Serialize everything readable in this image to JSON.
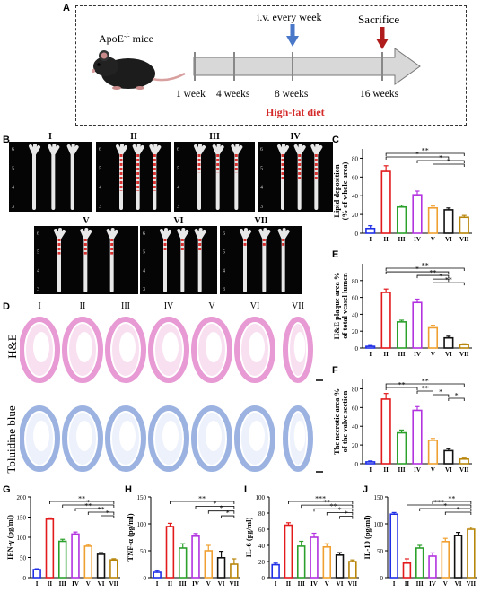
{
  "panels": {
    "A": "A",
    "B": "B",
    "C": "C",
    "D": "D",
    "E": "E",
    "F": "F",
    "G": "G",
    "H": "H",
    "I": "I",
    "J": "J"
  },
  "timeline": {
    "mouse_label": "ApoE",
    "mouse_sup": "-/-",
    "mouse_suffix": " mice",
    "iv_label": "i.v. every week",
    "sacrifice_label": "Sacrifice",
    "ticks": [
      "1 week",
      "4 weeks",
      "8 weeks",
      "16 weeks"
    ],
    "diet_label": "High-fat diet",
    "colors": {
      "iv_arrow": "#4a78c8",
      "sacrifice_arrow": "#b01c1c",
      "diet": "#d42a2a"
    }
  },
  "groups": [
    "I",
    "II",
    "III",
    "IV",
    "V",
    "VI",
    "VII"
  ],
  "bar_colors": [
    "#1f2fe6",
    "#e31a1c",
    "#2ca02c",
    "#b233e0",
    "#f0a030",
    "#111111",
    "#b8860b"
  ],
  "aorta_scale": [
    "6",
    "5",
    "4",
    "3"
  ],
  "stain_labels": [
    "H&E",
    "Toluidine blue"
  ],
  "chart_data": [
    {
      "panel": "C",
      "type": "bar",
      "ylabel_lines": [
        "Lipid deposition",
        "(% of whole area)"
      ],
      "ylim": [
        0,
        90
      ],
      "yticks": [
        0,
        20,
        40,
        60,
        80
      ],
      "categories": [
        "I",
        "II",
        "III",
        "IV",
        "V",
        "VI",
        "VII"
      ],
      "values": [
        5,
        66,
        28,
        41,
        27,
        25,
        17
      ],
      "errors": [
        3,
        6,
        2,
        4,
        2,
        2,
        2
      ],
      "sig": [
        {
          "from": 1,
          "to": 6,
          "label": "**"
        },
        {
          "from": 1,
          "to": 5,
          "label": "*"
        },
        {
          "from": 3,
          "to": 6,
          "label": "*"
        },
        {
          "from": 4,
          "to": 6,
          "label": "*"
        }
      ]
    },
    {
      "panel": "E",
      "type": "bar",
      "ylabel_lines": [
        "H&E plaque area %",
        "of total vessel lumen"
      ],
      "ylim": [
        0,
        100
      ],
      "yticks": [
        0,
        20,
        40,
        60,
        80
      ],
      "categories": [
        "I",
        "II",
        "III",
        "IV",
        "V",
        "VI",
        "VII"
      ],
      "values": [
        2,
        66,
        31,
        54,
        24,
        12,
        4
      ],
      "errors": [
        1,
        4,
        2,
        4,
        3,
        2,
        1
      ],
      "sig": [
        {
          "from": 1,
          "to": 6,
          "label": "**"
        },
        {
          "from": 1,
          "to": 5,
          "label": "*"
        },
        {
          "from": 3,
          "to": 5,
          "label": "**"
        },
        {
          "from": 4,
          "to": 5,
          "label": "*"
        },
        {
          "from": 4,
          "to": 6,
          "label": "**"
        }
      ]
    },
    {
      "panel": "F",
      "type": "bar",
      "ylabel_lines": [
        "The necrotic area %",
        "of the valve section"
      ],
      "ylim": [
        0,
        90
      ],
      "yticks": [
        0,
        20,
        40,
        60,
        80
      ],
      "categories": [
        "I",
        "II",
        "III",
        "IV",
        "V",
        "VI",
        "VII"
      ],
      "values": [
        2,
        69,
        33,
        57,
        25,
        14,
        5
      ],
      "errors": [
        1,
        6,
        3,
        4,
        2,
        2,
        1
      ],
      "sig": [
        {
          "from": 1,
          "to": 6,
          "label": "**"
        },
        {
          "from": 1,
          "to": 3,
          "label": "**"
        },
        {
          "from": 3,
          "to": 4,
          "label": "**"
        },
        {
          "from": 4,
          "to": 5,
          "label": "*"
        },
        {
          "from": 5,
          "to": 6,
          "label": "*"
        }
      ]
    },
    {
      "panel": "G",
      "type": "bar",
      "ylabel": "IFN-γ (pg/ml)",
      "ylim": [
        0,
        200
      ],
      "yticks": [
        0,
        50,
        100,
        150,
        200
      ],
      "categories": [
        "I",
        "II",
        "III",
        "IV",
        "V",
        "VI",
        "VII"
      ],
      "values": [
        20,
        145,
        90,
        108,
        78,
        58,
        44
      ],
      "errors": [
        2,
        3,
        5,
        5,
        4,
        4,
        3
      ],
      "sig": [
        {
          "from": 1,
          "to": 6,
          "label": "**"
        },
        {
          "from": 2,
          "to": 6,
          "label": "*"
        },
        {
          "from": 3,
          "to": 5,
          "label": "**"
        },
        {
          "from": 4,
          "to": 6,
          "label": "**"
        },
        {
          "from": 5,
          "to": 6,
          "label": "*"
        }
      ]
    },
    {
      "panel": "H",
      "type": "bar",
      "ylabel": "TNF-α (pg/ml)",
      "ylim": [
        0,
        150
      ],
      "yticks": [
        0,
        50,
        100,
        150
      ],
      "categories": [
        "I",
        "II",
        "III",
        "IV",
        "V",
        "VI",
        "VII"
      ],
      "values": [
        10,
        95,
        55,
        77,
        50,
        37,
        25
      ],
      "errors": [
        3,
        6,
        8,
        5,
        10,
        12,
        10
      ],
      "sig": [
        {
          "from": 1,
          "to": 6,
          "label": "**"
        },
        {
          "from": 3,
          "to": 6,
          "label": "*"
        },
        {
          "from": 4,
          "to": 6,
          "label": "*"
        },
        {
          "from": 5,
          "to": 6,
          "label": "*"
        }
      ]
    },
    {
      "panel": "I",
      "type": "bar",
      "ylabel": "IL-6 (pg/ml)",
      "ylim": [
        0,
        100
      ],
      "yticks": [
        0,
        20,
        40,
        60,
        80,
        100
      ],
      "categories": [
        "I",
        "II",
        "III",
        "IV",
        "V",
        "VI",
        "VII"
      ],
      "values": [
        16,
        65,
        39,
        50,
        38,
        28,
        20
      ],
      "errors": [
        2,
        3,
        6,
        5,
        4,
        3,
        2
      ],
      "sig": [
        {
          "from": 1,
          "to": 6,
          "label": "***"
        },
        {
          "from": 2,
          "to": 6,
          "label": "**"
        },
        {
          "from": 3,
          "to": 6,
          "label": "**"
        },
        {
          "from": 4,
          "to": 6,
          "label": "*"
        },
        {
          "from": 5,
          "to": 6,
          "label": "*"
        }
      ]
    },
    {
      "panel": "J",
      "type": "bar",
      "ylabel": "IL-10 (pg/ml)",
      "ylim": [
        0,
        150
      ],
      "yticks": [
        0,
        50,
        100,
        150
      ],
      "categories": [
        "I",
        "II",
        "III",
        "IV",
        "V",
        "VI",
        "VII"
      ],
      "values": [
        118,
        27,
        55,
        40,
        67,
        78,
        90
      ],
      "errors": [
        3,
        8,
        5,
        6,
        6,
        6,
        4
      ],
      "sig": [
        {
          "from": 3,
          "to": 6,
          "label": "**"
        },
        {
          "from": 1,
          "to": 6,
          "label": "***"
        },
        {
          "from": 2,
          "to": 6,
          "label": "*"
        },
        {
          "from": 4,
          "to": 6,
          "label": "*"
        }
      ]
    }
  ]
}
